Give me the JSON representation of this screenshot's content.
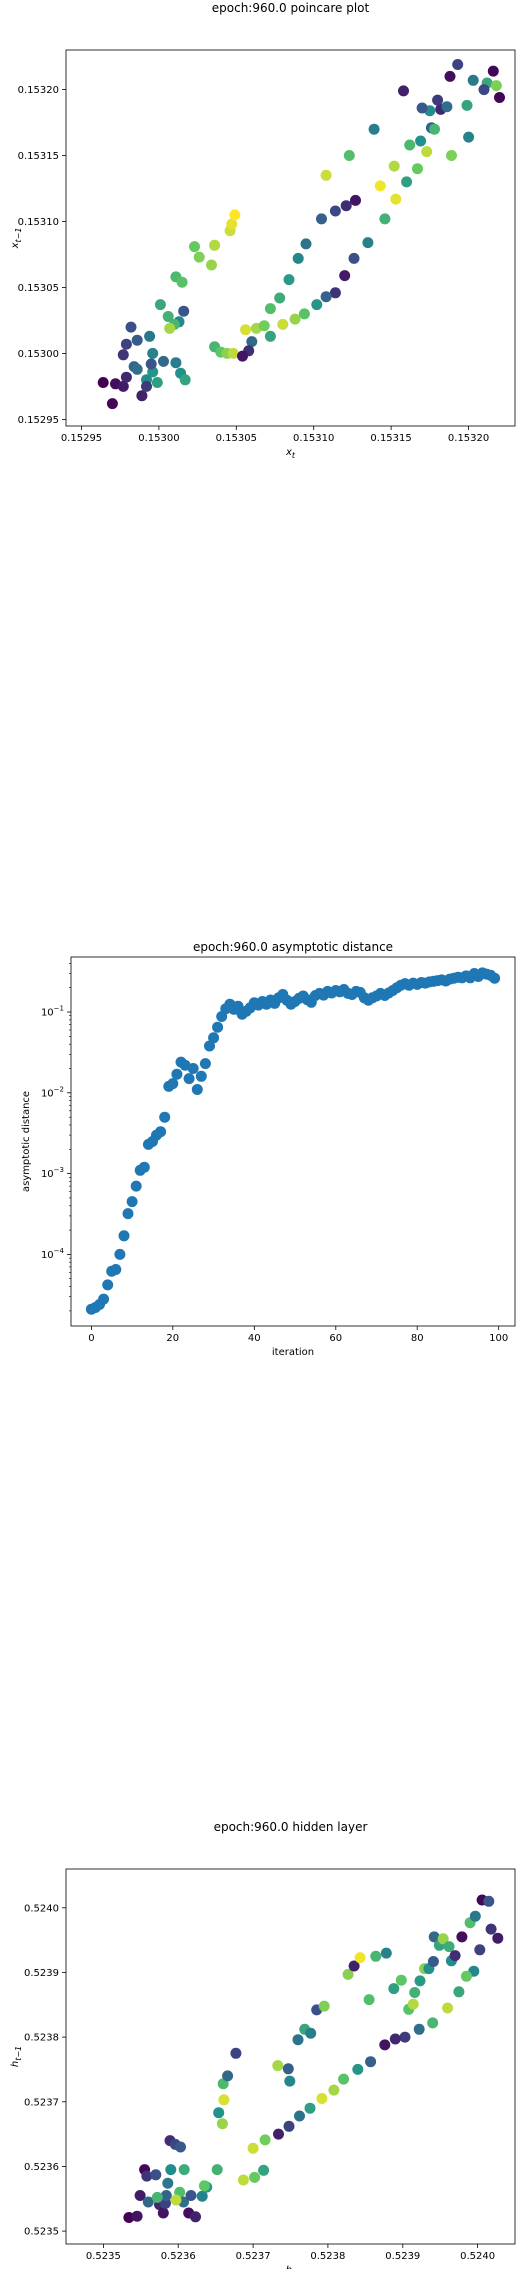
{
  "chart_data": [
    {
      "type": "scatter",
      "title": "epoch:960.0 poincare plot",
      "xlabel": "x_t",
      "ylabel": "x_{t-1}",
      "xlim": [
        0.15294,
        0.15323
      ],
      "ylim": [
        0.152945,
        0.15323
      ],
      "xticks": [
        0.15295,
        0.153,
        0.15305,
        0.1531,
        0.15315,
        0.1532
      ],
      "xtick_labels": [
        "0.15295",
        "0.15300",
        "0.15305",
        "0.15310",
        "0.15315",
        "0.15320"
      ],
      "yticks": [
        0.15295,
        0.153,
        0.15305,
        0.1531,
        0.15315,
        0.1532
      ],
      "ytick_labels": [
        "0.15295",
        "0.15300",
        "0.15305",
        "0.15310",
        "0.15315",
        "0.15320"
      ],
      "grid": false,
      "colormap": [
        "#440154",
        "#3b528b",
        "#21918c",
        "#5ec962",
        "#fde725"
      ],
      "points": [
        [
          0.152964,
          0.152978,
          0
        ],
        [
          0.152972,
          0.152977,
          0.04
        ],
        [
          0.152977,
          0.152975,
          0.08
        ],
        [
          0.152979,
          0.152982,
          0.12
        ],
        [
          0.152977,
          0.152999,
          0.16
        ],
        [
          0.152979,
          0.153007,
          0.2
        ],
        [
          0.152982,
          0.15302,
          0.24
        ],
        [
          0.152986,
          0.15301,
          0.28
        ],
        [
          0.152984,
          0.15299,
          0.32
        ],
        [
          0.152986,
          0.152988,
          0.36
        ],
        [
          0.152994,
          0.153013,
          0.4
        ],
        [
          0.152996,
          0.153,
          0.44
        ],
        [
          0.152992,
          0.15298,
          0.48
        ],
        [
          0.152996,
          0.152986,
          0.52
        ],
        [
          0.152999,
          0.152978,
          0.56
        ],
        [
          0.153001,
          0.153037,
          0.6
        ],
        [
          0.153006,
          0.153028,
          0.64
        ],
        [
          0.153011,
          0.153058,
          0.68
        ],
        [
          0.153015,
          0.153054,
          0.72
        ],
        [
          0.153023,
          0.153081,
          0.76
        ],
        [
          0.153026,
          0.153073,
          0.8
        ],
        [
          0.153034,
          0.153067,
          0.84
        ],
        [
          0.153036,
          0.153082,
          0.88
        ],
        [
          0.153046,
          0.153093,
          0.92
        ],
        [
          0.153047,
          0.153098,
          0.96
        ],
        [
          0.153049,
          0.153105,
          1
        ],
        [
          0.15297,
          0.152962,
          0.02
        ],
        [
          0.152989,
          0.152968,
          0.1
        ],
        [
          0.152992,
          0.152975,
          0.18
        ],
        [
          0.152995,
          0.152992,
          0.26
        ],
        [
          0.153003,
          0.152994,
          0.34
        ],
        [
          0.153011,
          0.152993,
          0.42
        ],
        [
          0.153014,
          0.152985,
          0.5
        ],
        [
          0.153017,
          0.15298,
          0.58
        ],
        [
          0.153036,
          0.153005,
          0.66
        ],
        [
          0.15304,
          0.153001,
          0.74
        ],
        [
          0.153044,
          0.153,
          0.82
        ],
        [
          0.153048,
          0.153,
          0.9
        ],
        [
          0.153056,
          0.153018,
          0.94
        ],
        [
          0.153063,
          0.153019,
          0.86
        ],
        [
          0.153068,
          0.153021,
          0.78
        ],
        [
          0.153072,
          0.153034,
          0.7
        ],
        [
          0.153078,
          0.153042,
          0.62
        ],
        [
          0.153084,
          0.153056,
          0.54
        ],
        [
          0.15309,
          0.153072,
          0.46
        ],
        [
          0.153095,
          0.153083,
          0.38
        ],
        [
          0.153105,
          0.153102,
          0.3
        ],
        [
          0.153114,
          0.153108,
          0.22
        ],
        [
          0.153121,
          0.153112,
          0.14
        ],
        [
          0.153127,
          0.153116,
          0.06
        ],
        [
          0.153143,
          0.153127,
          0.98
        ],
        [
          0.153152,
          0.153142,
          0.88
        ],
        [
          0.153162,
          0.153158,
          0.68
        ],
        [
          0.153169,
          0.153161,
          0.5
        ],
        [
          0.153176,
          0.153171,
          0.3
        ],
        [
          0.153182,
          0.153185,
          0.12
        ],
        [
          0.153188,
          0.15321,
          0.04
        ],
        [
          0.153193,
          0.153219,
          0.2
        ],
        [
          0.153203,
          0.153207,
          0.4
        ],
        [
          0.153212,
          0.153205,
          0.6
        ],
        [
          0.153218,
          0.153203,
          0.8
        ],
        [
          0.15322,
          0.153194,
          0.02
        ],
        [
          0.153186,
          0.153187,
          0.36
        ],
        [
          0.15318,
          0.153192,
          0.18
        ],
        [
          0.153175,
          0.153184,
          0.48
        ],
        [
          0.153178,
          0.15317,
          0.66
        ],
        [
          0.153173,
          0.153153,
          0.9
        ],
        [
          0.153167,
          0.15314,
          0.76
        ],
        [
          0.15316,
          0.15313,
          0.56
        ],
        [
          0.153153,
          0.153117,
          0.96
        ],
        [
          0.153146,
          0.153102,
          0.64
        ],
        [
          0.153135,
          0.153084,
          0.44
        ],
        [
          0.153126,
          0.153072,
          0.24
        ],
        [
          0.15312,
          0.153059,
          0.08
        ],
        [
          0.153114,
          0.153046,
          0.16
        ],
        [
          0.153108,
          0.153043,
          0.32
        ],
        [
          0.153102,
          0.153037,
          0.52
        ],
        [
          0.153094,
          0.15303,
          0.72
        ],
        [
          0.153088,
          0.153026,
          0.84
        ],
        [
          0.15308,
          0.153022,
          0.92
        ],
        [
          0.153072,
          0.153013,
          0.58
        ],
        [
          0.15306,
          0.153009,
          0.34
        ],
        [
          0.153058,
          0.153002,
          0.14
        ],
        [
          0.153054,
          0.152998,
          0.06
        ],
        [
          0.153016,
          0.153032,
          0.26
        ],
        [
          0.153013,
          0.153024,
          0.46
        ],
        [
          0.15301,
          0.153022,
          0.66
        ],
        [
          0.153007,
          0.153019,
          0.86
        ],
        [
          0.153108,
          0.153135,
          0.92
        ],
        [
          0.153123,
          0.15315,
          0.7
        ],
        [
          0.153139,
          0.15317,
          0.42
        ],
        [
          0.153158,
          0.153199,
          0.1
        ],
        [
          0.15317,
          0.153186,
          0.28
        ],
        [
          0.153199,
          0.153188,
          0.58
        ],
        [
          0.15321,
          0.1532,
          0.22
        ],
        [
          0.153216,
          0.153214,
          0.02
        ],
        [
          0.1532,
          0.153164,
          0.44
        ],
        [
          0.153189,
          0.15315,
          0.8
        ]
      ]
    },
    {
      "type": "scatter",
      "title": "epoch:960.0 asymptotic distance",
      "xlabel": "iteration",
      "ylabel": "asymptotic distance",
      "xlim": [
        -5,
        104
      ],
      "ylog": true,
      "ylim": [
        1.3e-05,
        0.48
      ],
      "xticks": [
        0,
        20,
        40,
        60,
        80,
        100
      ],
      "xtick_labels": [
        "0",
        "20",
        "40",
        "60",
        "80",
        "100"
      ],
      "yticks": [
        0.0001,
        0.001,
        0.01,
        0.1
      ],
      "ytick_base_labels": [
        "10",
        "10",
        "10",
        "10"
      ],
      "ytick_exp_labels": [
        "−4",
        "−3",
        "−2",
        "−1"
      ],
      "grid": false,
      "color": "#1f77b4",
      "x": [
        0,
        1,
        2,
        3,
        4,
        5,
        6,
        7,
        8,
        9,
        10,
        11,
        12,
        13,
        14,
        15,
        16,
        17,
        18,
        19,
        20,
        21,
        22,
        23,
        24,
        25,
        26,
        27,
        28,
        29,
        30,
        31,
        32,
        33,
        34,
        35,
        36,
        37,
        38,
        39,
        40,
        41,
        42,
        43,
        44,
        45,
        46,
        47,
        48,
        49,
        50,
        51,
        52,
        53,
        54,
        55,
        56,
        57,
        58,
        59,
        60,
        61,
        62,
        63,
        64,
        65,
        66,
        67,
        68,
        69,
        70,
        71,
        72,
        73,
        74,
        75,
        76,
        77,
        78,
        79,
        80,
        81,
        82,
        83,
        84,
        85,
        86,
        87,
        88,
        89,
        90,
        91,
        92,
        93,
        94,
        95,
        96,
        97,
        98,
        99
      ],
      "values": [
        2.1e-05,
        2.2e-05,
        2.4e-05,
        2.8e-05,
        4.2e-05,
        6.2e-05,
        6.5e-05,
        0.0001,
        0.00017,
        0.00032,
        0.00045,
        0.0007,
        0.0011,
        0.0012,
        0.0023,
        0.0025,
        0.003,
        0.0033,
        0.005,
        0.012,
        0.013,
        0.017,
        0.024,
        0.022,
        0.015,
        0.02,
        0.011,
        0.016,
        0.023,
        0.038,
        0.048,
        0.065,
        0.088,
        0.11,
        0.125,
        0.108,
        0.118,
        0.094,
        0.102,
        0.113,
        0.13,
        0.122,
        0.135,
        0.125,
        0.141,
        0.128,
        0.15,
        0.165,
        0.14,
        0.125,
        0.135,
        0.148,
        0.158,
        0.142,
        0.132,
        0.16,
        0.17,
        0.162,
        0.18,
        0.172,
        0.185,
        0.178,
        0.19,
        0.17,
        0.165,
        0.18,
        0.175,
        0.15,
        0.14,
        0.15,
        0.158,
        0.17,
        0.16,
        0.172,
        0.185,
        0.2,
        0.215,
        0.225,
        0.215,
        0.228,
        0.22,
        0.232,
        0.228,
        0.236,
        0.24,
        0.245,
        0.25,
        0.242,
        0.256,
        0.262,
        0.27,
        0.265,
        0.28,
        0.265,
        0.3,
        0.275,
        0.305,
        0.295,
        0.285,
        0.262
      ]
    },
    {
      "type": "scatter",
      "title": "epoch:960.0 hidden layer",
      "xlabel": "h_t",
      "ylabel": "h_{t-1}",
      "xlim": [
        0.52345,
        0.52405
      ],
      "ylim": [
        0.52348,
        0.52406
      ],
      "xticks": [
        0.5235,
        0.5236,
        0.5237,
        0.5238,
        0.5239,
        0.524
      ],
      "xtick_labels": [
        "0.5235",
        "0.5236",
        "0.5237",
        "0.5238",
        "0.5239",
        "0.5240"
      ],
      "yticks": [
        0.5235,
        0.5236,
        0.5237,
        0.5238,
        0.5239,
        0.524
      ],
      "ytick_labels": [
        "0.5235",
        "0.5236",
        "0.5237",
        "0.5238",
        "0.5239",
        "0.5240"
      ],
      "grid": false,
      "colormap": [
        "#440154",
        "#3b528b",
        "#21918c",
        "#5ec962",
        "#fde725"
      ],
      "points": [
        [
          0.523534,
          0.523521,
          0
        ],
        [
          0.523549,
          0.523555,
          0.08
        ],
        [
          0.523555,
          0.523595,
          0.02
        ],
        [
          0.523558,
          0.523585,
          0.16
        ],
        [
          0.52357,
          0.523587,
          0.24
        ],
        [
          0.523575,
          0.523541,
          0.12
        ],
        [
          0.52358,
          0.523528,
          0.06
        ],
        [
          0.523583,
          0.523543,
          0.2
        ],
        [
          0.523584,
          0.523555,
          0.32
        ],
        [
          0.523586,
          0.523574,
          0.4
        ],
        [
          0.52359,
          0.523595,
          0.48
        ],
        [
          0.523589,
          0.52364,
          0.14
        ],
        [
          0.523596,
          0.523634,
          0.22
        ],
        [
          0.523603,
          0.52363,
          0.28
        ],
        [
          0.523608,
          0.523595,
          0.62
        ],
        [
          0.523602,
          0.52356,
          0.7
        ],
        [
          0.523607,
          0.523545,
          0.36
        ],
        [
          0.523614,
          0.523528,
          0.04
        ],
        [
          0.523617,
          0.523555,
          0.26
        ],
        [
          0.523623,
          0.523522,
          0.1
        ],
        [
          0.523632,
          0.523554,
          0.44
        ],
        [
          0.523638,
          0.523568,
          0.52
        ],
        [
          0.523652,
          0.523595,
          0.64
        ],
        [
          0.523654,
          0.523683,
          0.5
        ],
        [
          0.523659,
          0.523666,
          0.84
        ],
        [
          0.523661,
          0.523703,
          0.94
        ],
        [
          0.52366,
          0.523728,
          0.68
        ],
        [
          0.523666,
          0.52374,
          0.34
        ],
        [
          0.523677,
          0.523775,
          0.2
        ],
        [
          0.523687,
          0.523579,
          0.9
        ],
        [
          0.523702,
          0.523583,
          0.76
        ],
        [
          0.523714,
          0.523594,
          0.58
        ],
        [
          0.523733,
          0.523756,
          0.86
        ],
        [
          0.523747,
          0.523751,
          0.3
        ],
        [
          0.523749,
          0.523732,
          0.46
        ],
        [
          0.52376,
          0.523796,
          0.38
        ],
        [
          0.523769,
          0.523812,
          0.6
        ],
        [
          0.523777,
          0.523806,
          0.42
        ],
        [
          0.523785,
          0.523842,
          0.24
        ],
        [
          0.523795,
          0.523848,
          0.8
        ],
        [
          0.523827,
          0.523897,
          0.82
        ],
        [
          0.523835,
          0.52391,
          0.1
        ],
        [
          0.523843,
          0.523923,
          0.98
        ],
        [
          0.523864,
          0.523925,
          0.66
        ],
        [
          0.523855,
          0.523858,
          0.7
        ],
        [
          0.523878,
          0.52393,
          0.44
        ],
        [
          0.523888,
          0.523875,
          0.56
        ],
        [
          0.523898,
          0.523888,
          0.74
        ],
        [
          0.523908,
          0.523843,
          0.72
        ],
        [
          0.523914,
          0.523851,
          0.88
        ],
        [
          0.523916,
          0.523869,
          0.64
        ],
        [
          0.523923,
          0.523887,
          0.54
        ],
        [
          0.523929,
          0.523906,
          0.82
        ],
        [
          0.523935,
          0.523906,
          0.5
        ],
        [
          0.523941,
          0.523917,
          0.28
        ],
        [
          0.523942,
          0.523955,
          0.34
        ],
        [
          0.523949,
          0.523942,
          0.58
        ],
        [
          0.523954,
          0.523952,
          0.84
        ],
        [
          0.523962,
          0.52394,
          0.62
        ],
        [
          0.523965,
          0.523918,
          0.48
        ],
        [
          0.52397,
          0.523926,
          0.14
        ],
        [
          0.523979,
          0.523955,
          0.04
        ],
        [
          0.52399,
          0.523977,
          0.7
        ],
        [
          0.523997,
          0.523987,
          0.4
        ],
        [
          0.524006,
          0.524012,
          0.02
        ],
        [
          0.524015,
          0.52401,
          0.26
        ],
        [
          0.524018,
          0.523967,
          0.16
        ],
        [
          0.524027,
          0.523953,
          0.08
        ],
        [
          0.524003,
          0.523935,
          0.2
        ],
        [
          0.523995,
          0.523902,
          0.46
        ],
        [
          0.523985,
          0.523894,
          0.76
        ],
        [
          0.523975,
          0.52387,
          0.6
        ],
        [
          0.52396,
          0.523845,
          0.9
        ],
        [
          0.52394,
          0.523822,
          0.66
        ],
        [
          0.523922,
          0.523812,
          0.36
        ],
        [
          0.523903,
          0.5238,
          0.18
        ],
        [
          0.52389,
          0.523797,
          0.12
        ],
        [
          0.523876,
          0.523788,
          0.06
        ],
        [
          0.523857,
          0.523762,
          0.3
        ],
        [
          0.52384,
          0.52375,
          0.52
        ],
        [
          0.523821,
          0.523735,
          0.72
        ],
        [
          0.523808,
          0.523718,
          0.86
        ],
        [
          0.523792,
          0.523705,
          0.94
        ],
        [
          0.523776,
          0.52369,
          0.56
        ],
        [
          0.523762,
          0.523678,
          0.38
        ],
        [
          0.523748,
          0.523662,
          0.2
        ],
        [
          0.523734,
          0.52365,
          0.1
        ],
        [
          0.523716,
          0.523641,
          0.78
        ],
        [
          0.5237,
          0.523628,
          0.92
        ],
        [
          0.523545,
          0.523523,
          0.06
        ],
        [
          0.52356,
          0.523545,
          0.34
        ],
        [
          0.523572,
          0.523552,
          0.66
        ],
        [
          0.523597,
          0.523548,
          0.9
        ],
        [
          0.523635,
          0.52357,
          0.74
        ]
      ]
    }
  ]
}
